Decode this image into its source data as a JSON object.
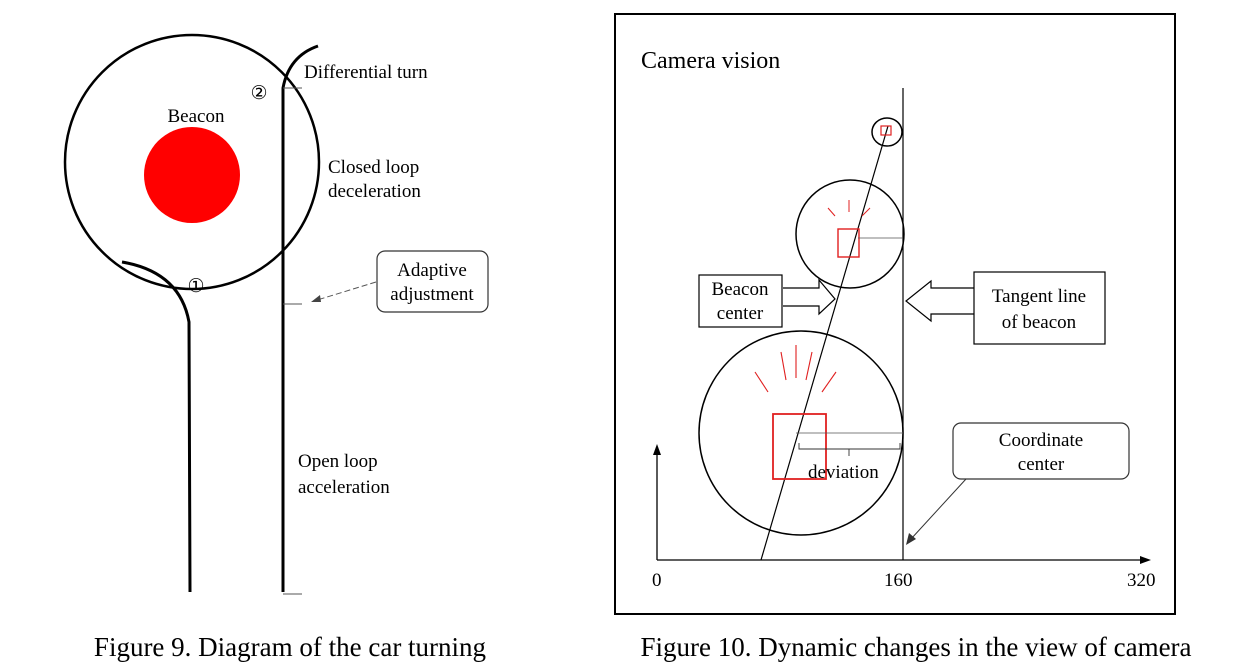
{
  "figure9": {
    "beacon_label": "Beacon",
    "marker_1": "①",
    "marker_2": "②",
    "differential_turn": "Differential turn",
    "closed_loop_line1": "Closed loop",
    "closed_loop_line2": "deceleration",
    "adaptive_line1": "Adaptive",
    "adaptive_line2": "adjustment",
    "open_loop_line1": "Open loop",
    "open_loop_line2": "acceleration",
    "caption": "Figure 9. Diagram of the car turning"
  },
  "figure10": {
    "title": "Camera vision",
    "beacon_center_line1": "Beacon",
    "beacon_center_line2": "center",
    "tangent_line1": "Tangent line",
    "tangent_line2": "of beacon",
    "deviation": "deviation",
    "coordinate_line1": "Coordinate",
    "coordinate_line2": "center",
    "axis_ticks": [
      "0",
      "160",
      "320"
    ],
    "caption": "Figure 10. Dynamic changes in the view of camera"
  },
  "colors": {
    "beacon_fill": "#ff0000",
    "marker_red": "#e02020",
    "line": "#000000"
  }
}
